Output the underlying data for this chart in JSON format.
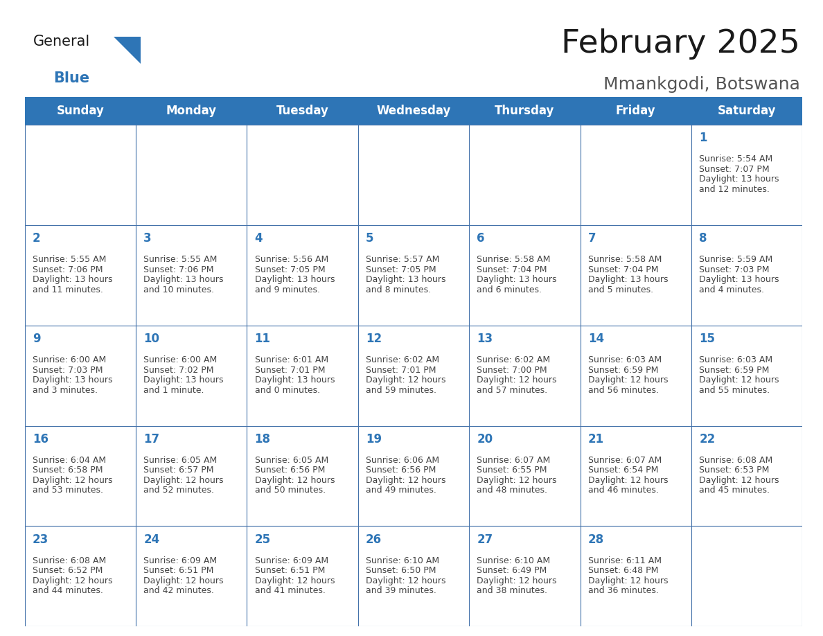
{
  "title": "February 2025",
  "subtitle": "Mmankgodi, Botswana",
  "header_bg_color": "#2E75B6",
  "header_text_color": "#FFFFFF",
  "cell_border_color": "#4472AA",
  "day_number_color": "#2E75B6",
  "info_text_color": "#444444",
  "bg_color": "#FFFFFF",
  "days_of_week": [
    "Sunday",
    "Monday",
    "Tuesday",
    "Wednesday",
    "Thursday",
    "Friday",
    "Saturday"
  ],
  "weeks": [
    [
      {
        "day": "",
        "info": ""
      },
      {
        "day": "",
        "info": ""
      },
      {
        "day": "",
        "info": ""
      },
      {
        "day": "",
        "info": ""
      },
      {
        "day": "",
        "info": ""
      },
      {
        "day": "",
        "info": ""
      },
      {
        "day": "1",
        "info": "Sunrise: 5:54 AM\nSunset: 7:07 PM\nDaylight: 13 hours\nand 12 minutes."
      }
    ],
    [
      {
        "day": "2",
        "info": "Sunrise: 5:55 AM\nSunset: 7:06 PM\nDaylight: 13 hours\nand 11 minutes."
      },
      {
        "day": "3",
        "info": "Sunrise: 5:55 AM\nSunset: 7:06 PM\nDaylight: 13 hours\nand 10 minutes."
      },
      {
        "day": "4",
        "info": "Sunrise: 5:56 AM\nSunset: 7:05 PM\nDaylight: 13 hours\nand 9 minutes."
      },
      {
        "day": "5",
        "info": "Sunrise: 5:57 AM\nSunset: 7:05 PM\nDaylight: 13 hours\nand 8 minutes."
      },
      {
        "day": "6",
        "info": "Sunrise: 5:58 AM\nSunset: 7:04 PM\nDaylight: 13 hours\nand 6 minutes."
      },
      {
        "day": "7",
        "info": "Sunrise: 5:58 AM\nSunset: 7:04 PM\nDaylight: 13 hours\nand 5 minutes."
      },
      {
        "day": "8",
        "info": "Sunrise: 5:59 AM\nSunset: 7:03 PM\nDaylight: 13 hours\nand 4 minutes."
      }
    ],
    [
      {
        "day": "9",
        "info": "Sunrise: 6:00 AM\nSunset: 7:03 PM\nDaylight: 13 hours\nand 3 minutes."
      },
      {
        "day": "10",
        "info": "Sunrise: 6:00 AM\nSunset: 7:02 PM\nDaylight: 13 hours\nand 1 minute."
      },
      {
        "day": "11",
        "info": "Sunrise: 6:01 AM\nSunset: 7:01 PM\nDaylight: 13 hours\nand 0 minutes."
      },
      {
        "day": "12",
        "info": "Sunrise: 6:02 AM\nSunset: 7:01 PM\nDaylight: 12 hours\nand 59 minutes."
      },
      {
        "day": "13",
        "info": "Sunrise: 6:02 AM\nSunset: 7:00 PM\nDaylight: 12 hours\nand 57 minutes."
      },
      {
        "day": "14",
        "info": "Sunrise: 6:03 AM\nSunset: 6:59 PM\nDaylight: 12 hours\nand 56 minutes."
      },
      {
        "day": "15",
        "info": "Sunrise: 6:03 AM\nSunset: 6:59 PM\nDaylight: 12 hours\nand 55 minutes."
      }
    ],
    [
      {
        "day": "16",
        "info": "Sunrise: 6:04 AM\nSunset: 6:58 PM\nDaylight: 12 hours\nand 53 minutes."
      },
      {
        "day": "17",
        "info": "Sunrise: 6:05 AM\nSunset: 6:57 PM\nDaylight: 12 hours\nand 52 minutes."
      },
      {
        "day": "18",
        "info": "Sunrise: 6:05 AM\nSunset: 6:56 PM\nDaylight: 12 hours\nand 50 minutes."
      },
      {
        "day": "19",
        "info": "Sunrise: 6:06 AM\nSunset: 6:56 PM\nDaylight: 12 hours\nand 49 minutes."
      },
      {
        "day": "20",
        "info": "Sunrise: 6:07 AM\nSunset: 6:55 PM\nDaylight: 12 hours\nand 48 minutes."
      },
      {
        "day": "21",
        "info": "Sunrise: 6:07 AM\nSunset: 6:54 PM\nDaylight: 12 hours\nand 46 minutes."
      },
      {
        "day": "22",
        "info": "Sunrise: 6:08 AM\nSunset: 6:53 PM\nDaylight: 12 hours\nand 45 minutes."
      }
    ],
    [
      {
        "day": "23",
        "info": "Sunrise: 6:08 AM\nSunset: 6:52 PM\nDaylight: 12 hours\nand 44 minutes."
      },
      {
        "day": "24",
        "info": "Sunrise: 6:09 AM\nSunset: 6:51 PM\nDaylight: 12 hours\nand 42 minutes."
      },
      {
        "day": "25",
        "info": "Sunrise: 6:09 AM\nSunset: 6:51 PM\nDaylight: 12 hours\nand 41 minutes."
      },
      {
        "day": "26",
        "info": "Sunrise: 6:10 AM\nSunset: 6:50 PM\nDaylight: 12 hours\nand 39 minutes."
      },
      {
        "day": "27",
        "info": "Sunrise: 6:10 AM\nSunset: 6:49 PM\nDaylight: 12 hours\nand 38 minutes."
      },
      {
        "day": "28",
        "info": "Sunrise: 6:11 AM\nSunset: 6:48 PM\nDaylight: 12 hours\nand 36 minutes."
      },
      {
        "day": "",
        "info": ""
      }
    ]
  ],
  "logo_general_color": "#1a1a1a",
  "logo_blue_color": "#2E75B6",
  "title_fontsize": 34,
  "subtitle_fontsize": 18,
  "header_fontsize": 12,
  "day_number_fontsize": 12,
  "info_fontsize": 9
}
